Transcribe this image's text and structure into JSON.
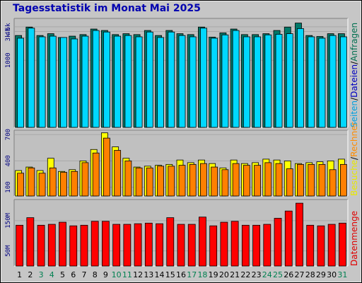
{
  "title": "Tagesstatistik im Monat Mai 2025",
  "chart_data": [
    {
      "type": "bar",
      "title": "Tagesstatistik im Monat Mai 2025",
      "scale": "log",
      "legend": [
        "Anfragen",
        "Dateien",
        "Seiten"
      ],
      "legend_colors": {
        "Anfragen": "#007050",
        "Dateien": "#0000c0",
        "Seiten": "#00a0e0"
      },
      "y_ticks": [
        "5k",
        "4k",
        "3k",
        "1000"
      ],
      "ylim": [
        40,
        7500
      ],
      "categories": [
        "1",
        "2",
        "3",
        "4",
        "5",
        "6",
        "7",
        "8",
        "9",
        "10",
        "11",
        "12",
        "13",
        "14",
        "15",
        "16",
        "17",
        "18",
        "19",
        "20",
        "21",
        "22",
        "23",
        "24",
        "25",
        "26",
        "27",
        "28",
        "29",
        "30",
        "31"
      ],
      "series": [
        {
          "name": "Anfragen",
          "color": "#007868",
          "values": [
            3300,
            4950,
            3300,
            3600,
            3000,
            3200,
            3450,
            4500,
            4200,
            3450,
            3600,
            3450,
            4200,
            3300,
            4200,
            3600,
            3450,
            4950,
            3050,
            3750,
            4500,
            3450,
            3450,
            3600,
            4200,
            4950,
            6000,
            3300,
            3150,
            3600,
            3600
          ]
        },
        {
          "name": "Seiten",
          "color": "#00d8ff",
          "values": [
            2900,
            4700,
            3100,
            3200,
            3000,
            2800,
            3200,
            4200,
            3900,
            3200,
            3300,
            3100,
            3900,
            3000,
            3900,
            3300,
            3100,
            4700,
            2900,
            3400,
            4200,
            3100,
            3100,
            3400,
            3500,
            3600,
            4600,
            3100,
            2900,
            3300,
            3100
          ]
        }
      ]
    },
    {
      "type": "bar",
      "legend": [
        "Rechner",
        "Besuche"
      ],
      "legend_colors": {
        "Rechner": "#ff8c00",
        "Besuche": "#e8e800"
      },
      "y_ticks": [
        "700",
        "400",
        "100"
      ],
      "ylim": [
        0,
        750
      ],
      "series": [
        {
          "name": "Besuche",
          "color": "#ffff00",
          "values": [
            290,
            330,
            290,
            430,
            280,
            300,
            400,
            530,
            720,
            560,
            430,
            330,
            340,
            350,
            360,
            410,
            380,
            410,
            370,
            320,
            410,
            370,
            380,
            420,
            410,
            400,
            370,
            380,
            390,
            400,
            420
          ]
        },
        {
          "name": "Rechner",
          "color": "#ff8000",
          "values": [
            260,
            320,
            260,
            320,
            270,
            280,
            380,
            490,
            660,
            520,
            400,
            320,
            320,
            340,
            340,
            350,
            360,
            370,
            330,
            300,
            370,
            350,
            350,
            380,
            370,
            310,
            360,
            360,
            360,
            300,
            360
          ]
        }
      ]
    },
    {
      "type": "bar",
      "legend": [
        "Datenmenge"
      ],
      "legend_colors": {
        "Datenmenge": "#e00000"
      },
      "y_ticks": [
        "150M",
        "50M"
      ],
      "ylim": [
        0,
        220
      ],
      "series": [
        {
          "name": "Datenmenge",
          "color": "#ff0000",
          "values": [
            135,
            160,
            135,
            138,
            145,
            133,
            135,
            148,
            148,
            138,
            138,
            140,
            142,
            140,
            160,
            138,
            138,
            162,
            133,
            145,
            148,
            135,
            135,
            138,
            158,
            182,
            208,
            135,
            133,
            138,
            142
          ]
        }
      ]
    }
  ]
}
